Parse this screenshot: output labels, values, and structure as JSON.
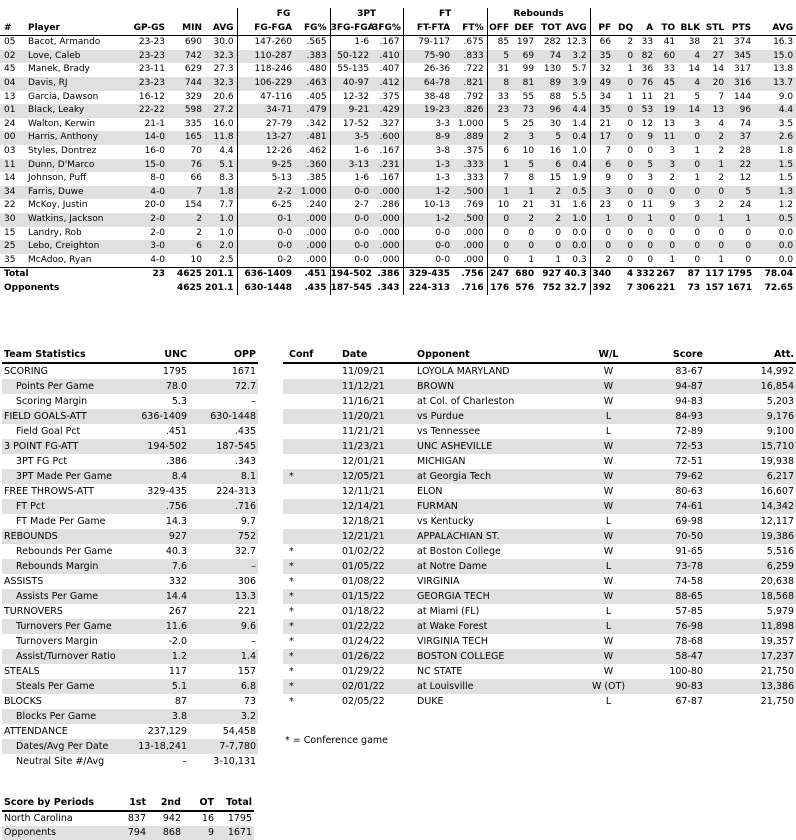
{
  "colors": {
    "stripe": "#e0e0e0",
    "rule": "#000000",
    "text": "#000000",
    "background": "#ffffff"
  },
  "player_table": {
    "group_headers": {
      "fg": "FG",
      "three": "3PT",
      "ft": "FT",
      "reb": "Rebounds"
    },
    "columns": [
      "#",
      "Player",
      "GP-GS",
      "MIN",
      "AVG",
      "FG-FGA",
      "FG%",
      "3FG-FGA",
      "3FG%",
      "FT-FTA",
      "FT%",
      "OFF",
      "DEF",
      "TOT",
      "AVG",
      "PF",
      "DQ",
      "A",
      "TO",
      "BLK",
      "STL",
      "PTS",
      "AVG"
    ],
    "rows": [
      [
        "05",
        "Bacot, Armando",
        "23-23",
        "690",
        "30.0",
        "147-260",
        ".565",
        "1-6",
        ".167",
        "79-117",
        ".675",
        "85",
        "197",
        "282",
        "12.3",
        "66",
        "2",
        "33",
        "41",
        "38",
        "21",
        "374",
        "16.3"
      ],
      [
        "02",
        "Love, Caleb",
        "23-23",
        "742",
        "32.3",
        "110-287",
        ".383",
        "50-122",
        ".410",
        "75-90",
        ".833",
        "5",
        "69",
        "74",
        "3.2",
        "35",
        "0",
        "82",
        "60",
        "4",
        "27",
        "345",
        "15.0"
      ],
      [
        "45",
        "Manek, Brady",
        "23-11",
        "629",
        "27.3",
        "118-246",
        ".480",
        "55-135",
        ".407",
        "26-36",
        ".722",
        "31",
        "99",
        "130",
        "5.7",
        "32",
        "1",
        "36",
        "33",
        "14",
        "14",
        "317",
        "13.8"
      ],
      [
        "04",
        "Davis, RJ",
        "23-23",
        "744",
        "32.3",
        "106-229",
        ".463",
        "40-97",
        ".412",
        "64-78",
        ".821",
        "8",
        "81",
        "89",
        "3.9",
        "49",
        "0",
        "76",
        "45",
        "4",
        "20",
        "316",
        "13.7"
      ],
      [
        "13",
        "Garcia, Dawson",
        "16-12",
        "329",
        "20.6",
        "47-116",
        ".405",
        "12-32",
        ".375",
        "38-48",
        ".792",
        "33",
        "55",
        "88",
        "5.5",
        "34",
        "1",
        "11",
        "21",
        "5",
        "7",
        "144",
        "9.0"
      ],
      [
        "01",
        "Black, Leaky",
        "22-22",
        "598",
        "27.2",
        "34-71",
        ".479",
        "9-21",
        ".429",
        "19-23",
        ".826",
        "23",
        "73",
        "96",
        "4.4",
        "35",
        "0",
        "53",
        "19",
        "14",
        "13",
        "96",
        "4.4"
      ],
      [
        "24",
        "Walton, Kerwin",
        "21-1",
        "335",
        "16.0",
        "27-79",
        ".342",
        "17-52",
        ".327",
        "3-3",
        "1.000",
        "5",
        "25",
        "30",
        "1.4",
        "21",
        "0",
        "12",
        "13",
        "3",
        "4",
        "74",
        "3.5"
      ],
      [
        "00",
        "Harris, Anthony",
        "14-0",
        "165",
        "11.8",
        "13-27",
        ".481",
        "3-5",
        ".600",
        "8-9",
        ".889",
        "2",
        "3",
        "5",
        "0.4",
        "17",
        "0",
        "9",
        "11",
        "0",
        "2",
        "37",
        "2.6"
      ],
      [
        "03",
        "Styles, Dontrez",
        "16-0",
        "70",
        "4.4",
        "12-26",
        ".462",
        "1-6",
        ".167",
        "3-8",
        ".375",
        "6",
        "10",
        "16",
        "1.0",
        "7",
        "0",
        "0",
        "3",
        "1",
        "2",
        "28",
        "1.8"
      ],
      [
        "11",
        "Dunn, D'Marco",
        "15-0",
        "76",
        "5.1",
        "9-25",
        ".360",
        "3-13",
        ".231",
        "1-3",
        ".333",
        "1",
        "5",
        "6",
        "0.4",
        "6",
        "0",
        "5",
        "3",
        "0",
        "1",
        "22",
        "1.5"
      ],
      [
        "14",
        "Johnson, Puff",
        "8-0",
        "66",
        "8.3",
        "5-13",
        ".385",
        "1-6",
        ".167",
        "1-3",
        ".333",
        "7",
        "8",
        "15",
        "1.9",
        "9",
        "0",
        "3",
        "2",
        "1",
        "2",
        "12",
        "1.5"
      ],
      [
        "34",
        "Farris, Duwe",
        "4-0",
        "7",
        "1.8",
        "2-2",
        "1.000",
        "0-0",
        ".000",
        "1-2",
        ".500",
        "1",
        "1",
        "2",
        "0.5",
        "3",
        "0",
        "0",
        "0",
        "0",
        "0",
        "5",
        "1.3"
      ],
      [
        "22",
        "McKoy, Justin",
        "20-0",
        "154",
        "7.7",
        "6-25",
        ".240",
        "2-7",
        ".286",
        "10-13",
        ".769",
        "10",
        "21",
        "31",
        "1.6",
        "23",
        "0",
        "11",
        "9",
        "3",
        "2",
        "24",
        "1.2"
      ],
      [
        "30",
        "Watkins, Jackson",
        "2-0",
        "2",
        "1.0",
        "0-1",
        ".000",
        "0-0",
        ".000",
        "1-2",
        ".500",
        "0",
        "2",
        "2",
        "1.0",
        "1",
        "0",
        "1",
        "0",
        "0",
        "1",
        "1",
        "0.5"
      ],
      [
        "15",
        "Landry, Rob",
        "2-0",
        "2",
        "1.0",
        "0-0",
        ".000",
        "0-0",
        ".000",
        "0-0",
        ".000",
        "0",
        "0",
        "0",
        "0.0",
        "0",
        "0",
        "0",
        "0",
        "0",
        "0",
        "0",
        "0.0"
      ],
      [
        "25",
        "Lebo, Creighton",
        "3-0",
        "6",
        "2.0",
        "0-0",
        ".000",
        "0-0",
        ".000",
        "0-0",
        ".000",
        "0",
        "0",
        "0",
        "0.0",
        "0",
        "0",
        "0",
        "0",
        "0",
        "0",
        "0",
        "0.0"
      ],
      [
        "35",
        "McAdoo, Ryan",
        "4-0",
        "10",
        "2.5",
        "0-2",
        ".000",
        "0-0",
        ".000",
        "0-0",
        ".000",
        "0",
        "1",
        "1",
        "0.3",
        "2",
        "0",
        "0",
        "1",
        "0",
        "1",
        "0",
        "0.0"
      ]
    ],
    "total_row": [
      "Total",
      "23",
      "4625",
      "201.1",
      "636-1409",
      ".451",
      "194-502",
      ".386",
      "329-435",
      ".756",
      "247",
      "680",
      "927",
      "40.3",
      "340",
      "4",
      "332",
      "267",
      "87",
      "117",
      "1795",
      "78.04"
    ],
    "opponents_row": [
      "Opponents",
      "",
      "4625",
      "201.1",
      "630-1448",
      ".435",
      "187-545",
      ".343",
      "224-313",
      ".716",
      "176",
      "576",
      "752",
      "32.7",
      "392",
      "7",
      "306",
      "221",
      "73",
      "157",
      "1671",
      "72.65"
    ]
  },
  "team_stats": {
    "headers": [
      "Team Statistics",
      "UNC",
      "OPP"
    ],
    "rows": [
      {
        "label": "SCORING",
        "sub": false,
        "unc": "1795",
        "opp": "1671"
      },
      {
        "label": "Points Per Game",
        "sub": true,
        "unc": "78.0",
        "opp": "72.7"
      },
      {
        "label": "Scoring Margin",
        "sub": true,
        "unc": "5.3",
        "opp": "–"
      },
      {
        "label": "FIELD GOALS-ATT",
        "sub": false,
        "unc": "636-1409",
        "opp": "630-1448"
      },
      {
        "label": "Field Goal Pct",
        "sub": true,
        "unc": ".451",
        "opp": ".435"
      },
      {
        "label": "3 POINT FG-ATT",
        "sub": false,
        "unc": "194-502",
        "opp": "187-545"
      },
      {
        "label": "3PT FG Pct",
        "sub": true,
        "unc": ".386",
        "opp": ".343"
      },
      {
        "label": "3PT Made Per Game",
        "sub": true,
        "unc": "8.4",
        "opp": "8.1"
      },
      {
        "label": "FREE THROWS-ATT",
        "sub": false,
        "unc": "329-435",
        "opp": "224-313"
      },
      {
        "label": "FT Pct",
        "sub": true,
        "unc": ".756",
        "opp": ".716"
      },
      {
        "label": "FT Made Per Game",
        "sub": true,
        "unc": "14.3",
        "opp": "9.7"
      },
      {
        "label": "REBOUNDS",
        "sub": false,
        "unc": "927",
        "opp": "752"
      },
      {
        "label": "Rebounds Per Game",
        "sub": true,
        "unc": "40.3",
        "opp": "32.7"
      },
      {
        "label": "Rebounds Margin",
        "sub": true,
        "unc": "7.6",
        "opp": "–"
      },
      {
        "label": "ASSISTS",
        "sub": false,
        "unc": "332",
        "opp": "306"
      },
      {
        "label": "Assists Per Game",
        "sub": true,
        "unc": "14.4",
        "opp": "13.3"
      },
      {
        "label": "TURNOVERS",
        "sub": false,
        "unc": "267",
        "opp": "221"
      },
      {
        "label": "Turnovers Per Game",
        "sub": true,
        "unc": "11.6",
        "opp": "9.6"
      },
      {
        "label": "Turnovers Margin",
        "sub": true,
        "unc": "-2.0",
        "opp": "–"
      },
      {
        "label": "Assist/Turnover Ratio",
        "sub": true,
        "unc": "1.2",
        "opp": "1.4"
      },
      {
        "label": "STEALS",
        "sub": false,
        "unc": "117",
        "opp": "157"
      },
      {
        "label": "Steals Per Game",
        "sub": true,
        "unc": "5.1",
        "opp": "6.8"
      },
      {
        "label": "BLOCKS",
        "sub": false,
        "unc": "87",
        "opp": "73"
      },
      {
        "label": "Blocks Per Game",
        "sub": true,
        "unc": "3.8",
        "opp": "3.2"
      },
      {
        "label": "ATTENDANCE",
        "sub": false,
        "unc": "237,129",
        "opp": "54,458"
      },
      {
        "label": "Dates/Avg Per Date",
        "sub": true,
        "unc": "13-18,241",
        "opp": "7-7,780"
      },
      {
        "label": "Neutral Site #/Avg",
        "sub": true,
        "unc": "–",
        "opp": "3-10,131"
      }
    ]
  },
  "game_log": {
    "headers": [
      "Conf",
      "Date",
      "Opponent",
      "W/L",
      "Score",
      "Att."
    ],
    "rows": [
      {
        "conf": "",
        "date": "11/09/21",
        "opponent": "LOYOLA MARYLAND",
        "wl": "W",
        "score": "83-67",
        "att": "14,992"
      },
      {
        "conf": "",
        "date": "11/12/21",
        "opponent": "BROWN",
        "wl": "W",
        "score": "94-87",
        "att": "16,854"
      },
      {
        "conf": "",
        "date": "11/16/21",
        "opponent": "at Col. of Charleston",
        "wl": "W",
        "score": "94-83",
        "att": "5,203"
      },
      {
        "conf": "",
        "date": "11/20/21",
        "opponent": "vs Purdue",
        "wl": "L",
        "score": "84-93",
        "att": "9,176"
      },
      {
        "conf": "",
        "date": "11/21/21",
        "opponent": "vs Tennessee",
        "wl": "L",
        "score": "72-89",
        "att": "9,100"
      },
      {
        "conf": "",
        "date": "11/23/21",
        "opponent": "UNC ASHEVILLE",
        "wl": "W",
        "score": "72-53",
        "att": "15,710"
      },
      {
        "conf": "",
        "date": "12/01/21",
        "opponent": "MICHIGAN",
        "wl": "W",
        "score": "72-51",
        "att": "19,938"
      },
      {
        "conf": "*",
        "date": "12/05/21",
        "opponent": "at Georgia Tech",
        "wl": "W",
        "score": "79-62",
        "att": "6,217"
      },
      {
        "conf": "",
        "date": "12/11/21",
        "opponent": "ELON",
        "wl": "W",
        "score": "80-63",
        "att": "16,607"
      },
      {
        "conf": "",
        "date": "12/14/21",
        "opponent": "FURMAN",
        "wl": "W",
        "score": "74-61",
        "att": "14,342"
      },
      {
        "conf": "",
        "date": "12/18/21",
        "opponent": "vs Kentucky",
        "wl": "L",
        "score": "69-98",
        "att": "12,117"
      },
      {
        "conf": "",
        "date": "12/21/21",
        "opponent": "APPALACHIAN ST.",
        "wl": "W",
        "score": "70-50",
        "att": "19,386"
      },
      {
        "conf": "*",
        "date": "01/02/22",
        "opponent": "at Boston College",
        "wl": "W",
        "score": "91-65",
        "att": "5,516"
      },
      {
        "conf": "*",
        "date": "01/05/22",
        "opponent": "at Notre Dame",
        "wl": "L",
        "score": "73-78",
        "att": "6,259"
      },
      {
        "conf": "*",
        "date": "01/08/22",
        "opponent": "VIRGINIA",
        "wl": "W",
        "score": "74-58",
        "att": "20,638"
      },
      {
        "conf": "*",
        "date": "01/15/22",
        "opponent": "GEORGIA TECH",
        "wl": "W",
        "score": "88-65",
        "att": "18,568"
      },
      {
        "conf": "*",
        "date": "01/18/22",
        "opponent": "at Miami (FL)",
        "wl": "L",
        "score": "57-85",
        "att": "5,979"
      },
      {
        "conf": "*",
        "date": "01/22/22",
        "opponent": "at Wake Forest",
        "wl": "L",
        "score": "76-98",
        "att": "11,898"
      },
      {
        "conf": "*",
        "date": "01/24/22",
        "opponent": "VIRGINIA TECH",
        "wl": "W",
        "score": "78-68",
        "att": "19,357"
      },
      {
        "conf": "*",
        "date": "01/26/22",
        "opponent": "BOSTON COLLEGE",
        "wl": "W",
        "score": "58-47",
        "att": "17,237"
      },
      {
        "conf": "*",
        "date": "01/29/22",
        "opponent": "NC STATE",
        "wl": "W",
        "score": "100-80",
        "att": "21,750"
      },
      {
        "conf": "*",
        "date": "02/01/22",
        "opponent": "at Louisville",
        "wl": "W (OT)",
        "score": "90-83",
        "att": "13,386"
      },
      {
        "conf": "*",
        "date": "02/05/22",
        "opponent": "DUKE",
        "wl": "L",
        "score": "67-87",
        "att": "21,750"
      }
    ],
    "footnote": "* = Conference game"
  },
  "score_by_periods": {
    "headers": [
      "Score by Periods",
      "1st",
      "2nd",
      "OT",
      "Total"
    ],
    "rows": [
      {
        "team": "North Carolina",
        "p1": "837",
        "p2": "942",
        "ot": "16",
        "total": "1795"
      },
      {
        "team": "Opponents",
        "p1": "794",
        "p2": "868",
        "ot": "9",
        "total": "1671"
      }
    ]
  }
}
